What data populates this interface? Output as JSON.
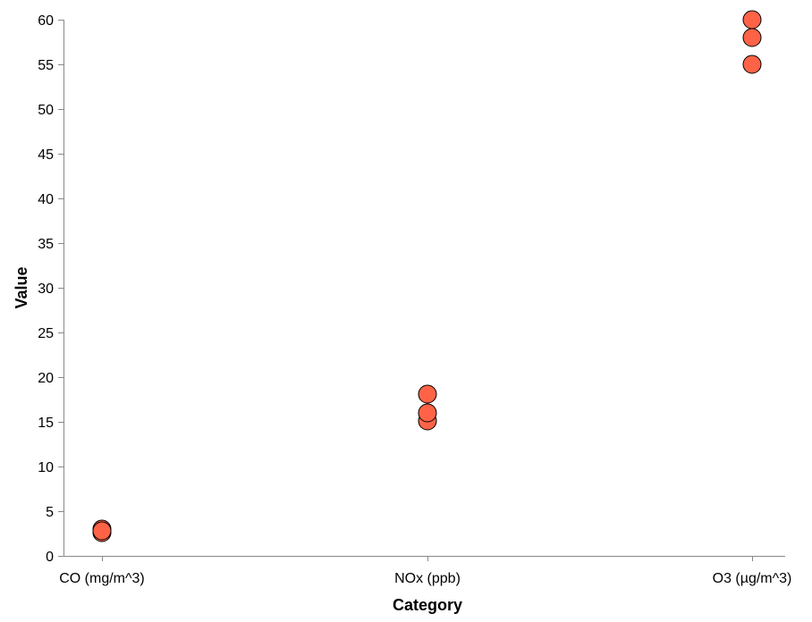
{
  "chart_data": {
    "type": "scatter",
    "xlabel": "Category",
    "ylabel": "Value",
    "categories": [
      "CO (mg/m^3)",
      "NOx (ppb)",
      "O3 (µg/m^3)"
    ],
    "ylim": [
      0,
      60
    ],
    "yticks": [
      0,
      5,
      10,
      15,
      20,
      25,
      30,
      35,
      40,
      45,
      50,
      55,
      60
    ],
    "grid": false,
    "legend": "none",
    "point_color": "#ff6347",
    "points": [
      {
        "x": "CO (mg/m^3)",
        "y": 2.6
      },
      {
        "x": "CO (mg/m^3)",
        "y": 3.0
      },
      {
        "x": "CO (mg/m^3)",
        "y": 2.8
      },
      {
        "x": "NOx (ppb)",
        "y": 15.1
      },
      {
        "x": "NOx (ppb)",
        "y": 16.0
      },
      {
        "x": "NOx (ppb)",
        "y": 18.1
      },
      {
        "x": "O3 (µg/m^3)",
        "y": 55.0
      },
      {
        "x": "O3 (µg/m^3)",
        "y": 58.0
      },
      {
        "x": "O3 (µg/m^3)",
        "y": 60.0
      }
    ]
  }
}
